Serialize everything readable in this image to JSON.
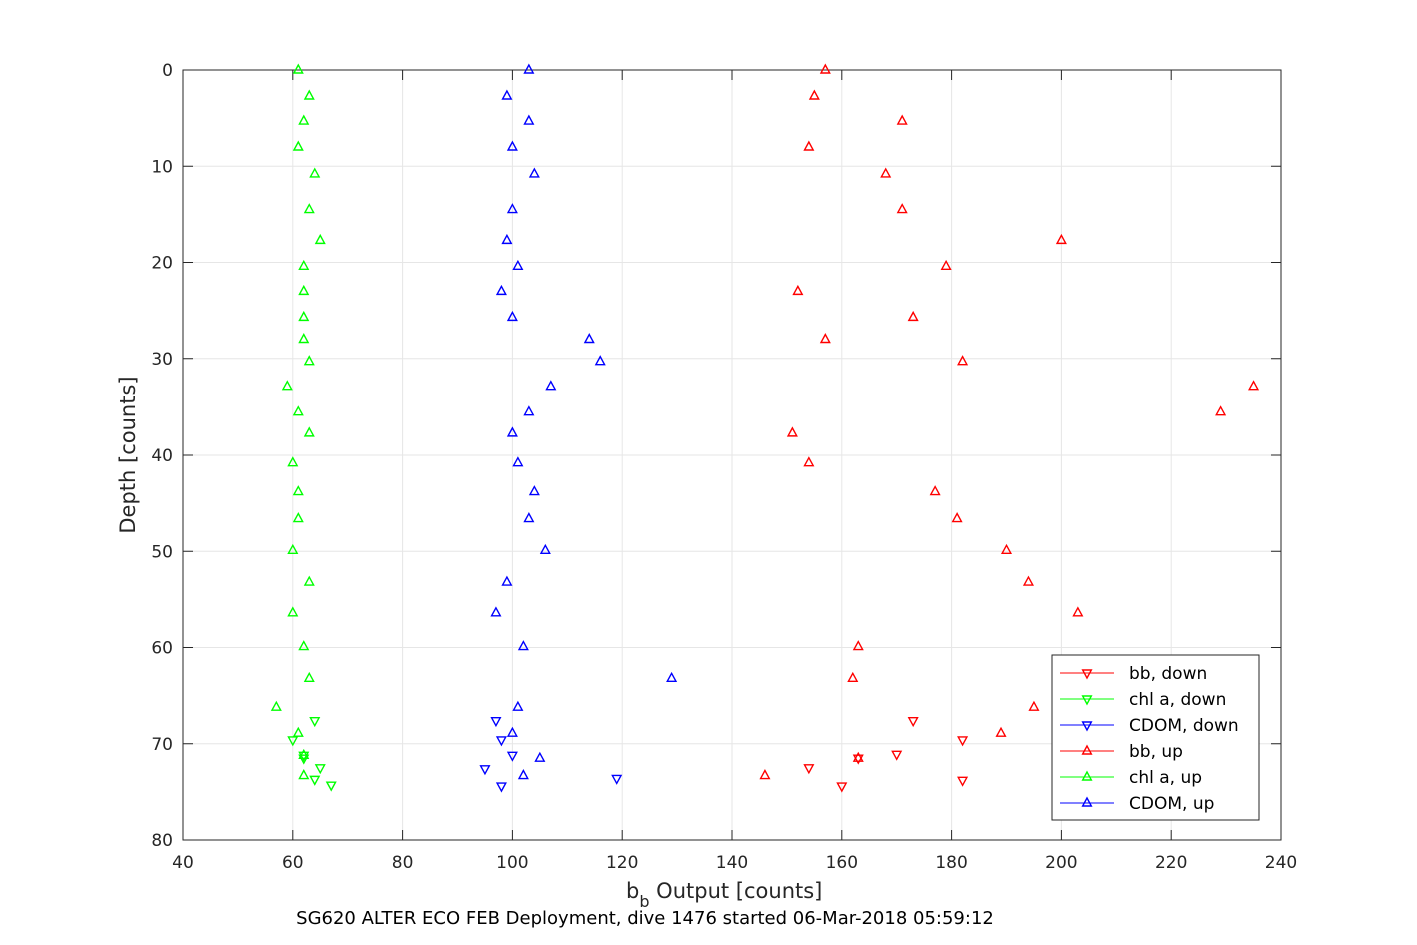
{
  "chart_data": {
    "type": "scatter",
    "xlabel_main": "b",
    "xlabel_sub": "b",
    "xlabel_rest": " Output [counts]",
    "ylabel": "Depth [counts]",
    "caption": "SG620 ALTER ECO FEB Deployment, dive 1476 started 06-Mar-2018 05:59:12",
    "xlim": [
      40,
      240
    ],
    "ylim": [
      0,
      80
    ],
    "y_reversed": true,
    "grid": true,
    "legend_position": "bottom-right",
    "xticks": [
      40,
      60,
      80,
      100,
      120,
      140,
      160,
      180,
      200,
      220,
      240
    ],
    "yticks": [
      0,
      10,
      20,
      30,
      40,
      50,
      60,
      70,
      80
    ],
    "series": [
      {
        "name": "bb, down",
        "color": "#ff0000",
        "marker": "down",
        "points": [
          [
            182,
            73.8
          ],
          [
            160,
            74.4
          ],
          [
            154,
            72.5
          ],
          [
            163,
            71.5
          ],
          [
            170,
            71.1
          ],
          [
            182,
            69.6
          ],
          [
            173,
            67.6
          ]
        ]
      },
      {
        "name": "chl a, down",
        "color": "#00ff00",
        "marker": "down",
        "points": [
          [
            64,
            73.7
          ],
          [
            67,
            74.3
          ],
          [
            65,
            72.5
          ],
          [
            62,
            71.2
          ],
          [
            62,
            71.5
          ],
          [
            60,
            69.6
          ],
          [
            64,
            67.6
          ]
        ]
      },
      {
        "name": "CDOM, down",
        "color": "#0000ff",
        "marker": "down",
        "points": [
          [
            119,
            73.6
          ],
          [
            98,
            74.4
          ],
          [
            95,
            72.6
          ],
          [
            100,
            71.2
          ],
          [
            98,
            69.6
          ],
          [
            97,
            67.6
          ]
        ]
      },
      {
        "name": "bb, up",
        "color": "#ff0000",
        "marker": "up",
        "points": [
          [
            157,
            0
          ],
          [
            155,
            2.7
          ],
          [
            171,
            5.3
          ],
          [
            154,
            8
          ],
          [
            168,
            10.8
          ],
          [
            171,
            14.5
          ],
          [
            200,
            17.7
          ],
          [
            179,
            20.4
          ],
          [
            152,
            23
          ],
          [
            173,
            25.7
          ],
          [
            157,
            28
          ],
          [
            182,
            30.3
          ],
          [
            235,
            32.9
          ],
          [
            229,
            35.5
          ],
          [
            151,
            37.7
          ],
          [
            154,
            40.8
          ],
          [
            177,
            43.8
          ],
          [
            181,
            46.6
          ],
          [
            190,
            49.9
          ],
          [
            194,
            53.2
          ],
          [
            203,
            56.4
          ],
          [
            163,
            59.9
          ],
          [
            162,
            63.2
          ],
          [
            195,
            66.2
          ],
          [
            189,
            68.9
          ],
          [
            163,
            71.5
          ],
          [
            146,
            73.3
          ]
        ]
      },
      {
        "name": "chl a, up",
        "color": "#00ff00",
        "marker": "up",
        "points": [
          [
            61,
            0
          ],
          [
            63,
            2.7
          ],
          [
            62,
            5.3
          ],
          [
            61,
            8
          ],
          [
            64,
            10.8
          ],
          [
            63,
            14.5
          ],
          [
            65,
            17.7
          ],
          [
            62,
            20.4
          ],
          [
            62,
            23
          ],
          [
            62,
            25.7
          ],
          [
            62,
            28
          ],
          [
            63,
            30.3
          ],
          [
            59,
            32.9
          ],
          [
            61,
            35.5
          ],
          [
            63,
            37.7
          ],
          [
            60,
            40.8
          ],
          [
            61,
            43.8
          ],
          [
            61,
            46.6
          ],
          [
            60,
            49.9
          ],
          [
            63,
            53.2
          ],
          [
            60,
            56.4
          ],
          [
            62,
            59.9
          ],
          [
            63,
            63.2
          ],
          [
            57,
            66.2
          ],
          [
            61,
            68.9
          ],
          [
            62,
            71.2
          ],
          [
            62,
            73.3
          ]
        ]
      },
      {
        "name": "CDOM, up",
        "color": "#0000ff",
        "marker": "up",
        "points": [
          [
            103,
            0
          ],
          [
            99,
            2.7
          ],
          [
            103,
            5.3
          ],
          [
            100,
            8
          ],
          [
            104,
            10.8
          ],
          [
            100,
            14.5
          ],
          [
            99,
            17.7
          ],
          [
            101,
            20.4
          ],
          [
            98,
            23
          ],
          [
            100,
            25.7
          ],
          [
            114,
            28
          ],
          [
            116,
            30.3
          ],
          [
            107,
            32.9
          ],
          [
            103,
            35.5
          ],
          [
            100,
            37.7
          ],
          [
            101,
            40.8
          ],
          [
            104,
            43.8
          ],
          [
            103,
            46.6
          ],
          [
            106,
            49.9
          ],
          [
            99,
            53.2
          ],
          [
            97,
            56.4
          ],
          [
            102,
            59.9
          ],
          [
            129,
            63.2
          ],
          [
            101,
            66.2
          ],
          [
            100,
            68.9
          ],
          [
            105,
            71.5
          ],
          [
            102,
            73.3
          ]
        ]
      }
    ]
  }
}
